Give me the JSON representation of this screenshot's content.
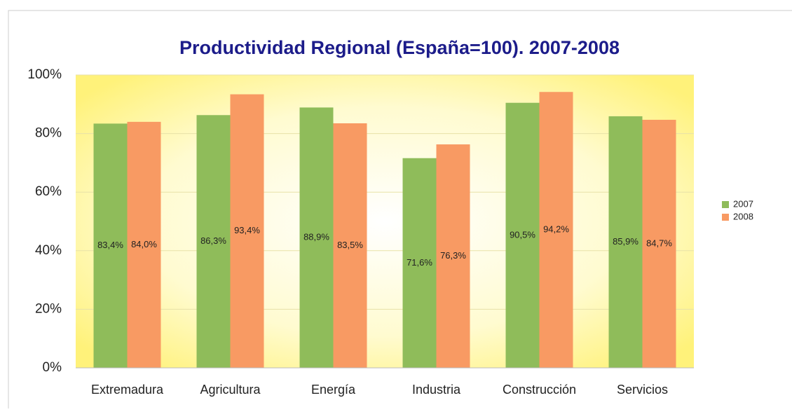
{
  "chart_data": {
    "type": "bar",
    "title": "Productividad Regional (España=100). 2007-2008",
    "categories": [
      "Extremadura",
      "Agricultura",
      "Energía",
      "Industria",
      "Construcción",
      "Servicios"
    ],
    "series": [
      {
        "name": "2007",
        "color": "#8fbc5a",
        "values": [
          83.4,
          86.3,
          88.9,
          71.6,
          90.5,
          85.9
        ],
        "value_labels": [
          "83,4%",
          "86,3%",
          "88,9%",
          "71,6%",
          "90,5%",
          "85,9%"
        ]
      },
      {
        "name": "2008",
        "color": "#f89a63",
        "values": [
          84.0,
          93.4,
          83.5,
          76.3,
          94.2,
          84.7
        ],
        "value_labels": [
          "84,0%",
          "93,4%",
          "83,5%",
          "76,3%",
          "94,2%",
          "84,7%"
        ]
      }
    ],
    "ylim": [
      0,
      100
    ],
    "yticks": [
      {
        "value": 0,
        "label": "0%"
      },
      {
        "value": 20,
        "label": "20%"
      },
      {
        "value": 40,
        "label": "40%"
      },
      {
        "value": 60,
        "label": "60%"
      },
      {
        "value": 80,
        "label": "80%"
      },
      {
        "value": 100,
        "label": "100%"
      }
    ],
    "grid": true,
    "legend": "right"
  }
}
